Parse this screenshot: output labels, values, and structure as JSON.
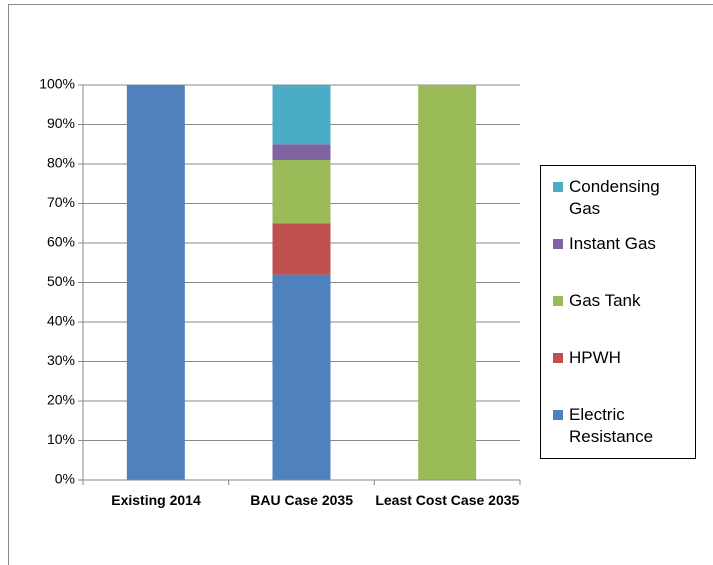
{
  "chart_data": {
    "type": "stacked_bar",
    "categories": [
      "Existing 2014",
      "BAU Case 2035",
      "Least Cost Case 2035"
    ],
    "series": [
      {
        "name": "Electric Resistance",
        "color": "#4f81bd",
        "values": [
          100,
          52,
          0
        ]
      },
      {
        "name": "HPWH",
        "color": "#c0504d",
        "values": [
          0,
          13,
          0
        ]
      },
      {
        "name": "Gas Tank",
        "color": "#9bbb59",
        "values": [
          0,
          16,
          100
        ]
      },
      {
        "name": "Instant Gas",
        "color": "#8064a2",
        "values": [
          0,
          4,
          0
        ]
      },
      {
        "name": "Condensing Gas",
        "color": "#4bacc6",
        "values": [
          0,
          15,
          0
        ]
      }
    ],
    "ylim": [
      0,
      100
    ],
    "yticks": [
      {
        "value": 0,
        "label": "0%"
      },
      {
        "value": 10,
        "label": "10%"
      },
      {
        "value": 20,
        "label": "20%"
      },
      {
        "value": 30,
        "label": "30%"
      },
      {
        "value": 40,
        "label": "40%"
      },
      {
        "value": 50,
        "label": "50%"
      },
      {
        "value": 60,
        "label": "60%"
      },
      {
        "value": 70,
        "label": "70%"
      },
      {
        "value": 80,
        "label": "80%"
      },
      {
        "value": 90,
        "label": "90%"
      },
      {
        "value": 100,
        "label": "100%"
      }
    ],
    "grid": true,
    "legend": "right"
  }
}
